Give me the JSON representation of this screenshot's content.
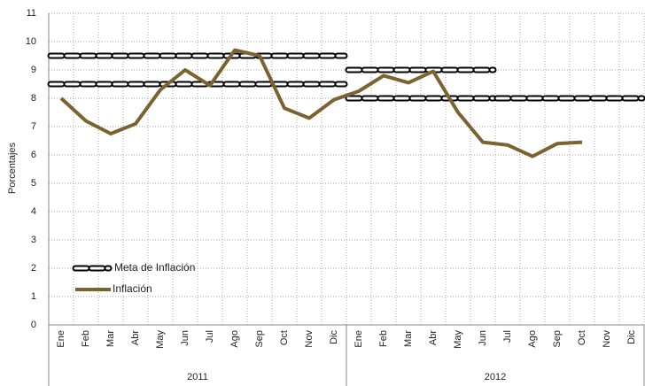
{
  "chart_data": {
    "type": "line",
    "y_axis_label": "Porcentajes",
    "groups": [
      {
        "label": "2011",
        "categories": [
          "Ene",
          "Feb",
          "Mar",
          "Abr",
          "May",
          "Jun",
          "Jul",
          "Ago",
          "Sep",
          "Oct",
          "Nov",
          "Dic"
        ]
      },
      {
        "label": "2012",
        "categories": [
          "Ene",
          "Feb",
          "Mar",
          "Abr",
          "May",
          "Jun",
          "Jul",
          "Ago",
          "Sep",
          "Oct",
          "Nov",
          "Dic"
        ]
      }
    ],
    "target": {
      "name": "Meta de Inflación",
      "color": "#000000",
      "upper": [
        9.5,
        9.5,
        9.5,
        9.5,
        9.5,
        9.5,
        9.5,
        9.5,
        9.5,
        9.5,
        9.5,
        9.5,
        9,
        9,
        9,
        9,
        9,
        9,
        null,
        null,
        null,
        null,
        null,
        null
      ],
      "lower": [
        8.5,
        8.5,
        8.5,
        8.5,
        8.5,
        8.5,
        8.5,
        8.5,
        8.5,
        8.5,
        8.5,
        8.5,
        8,
        8,
        8,
        8,
        8,
        8,
        8,
        8,
        8,
        8,
        8,
        8
      ]
    },
    "series": [
      {
        "name": "Inflación",
        "color": "#7b6331",
        "values": [
          8.0,
          7.2,
          6.75,
          7.1,
          8.3,
          9.0,
          8.45,
          9.7,
          9.5,
          7.65,
          7.3,
          7.95,
          8.25,
          8.8,
          8.55,
          8.95,
          7.5,
          6.45,
          6.35,
          5.95,
          6.4,
          6.45,
          null,
          null
        ]
      }
    ],
    "ylim": [
      0,
      11
    ],
    "yticks": [
      0,
      1,
      2,
      3,
      4,
      5,
      6,
      7,
      8,
      9,
      10,
      11
    ],
    "grid": true
  }
}
